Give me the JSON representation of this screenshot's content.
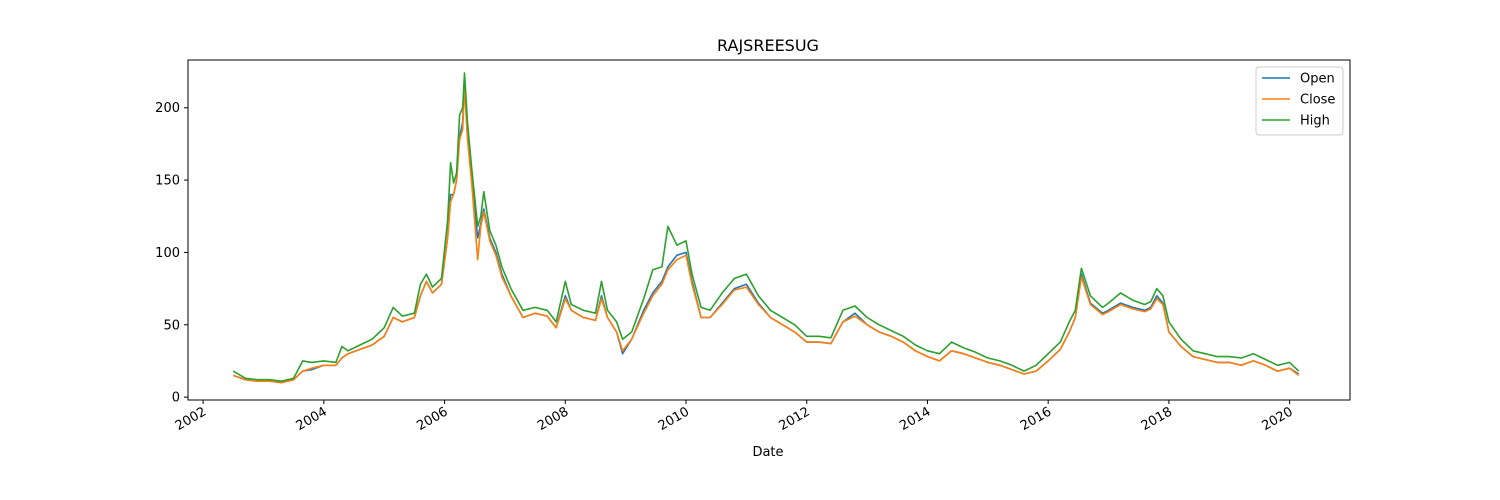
{
  "chart_data": {
    "type": "line",
    "title": "RAJSREESUG",
    "xlabel": "Date",
    "ylabel": "",
    "legend_position": "top-right",
    "grid": false,
    "xlim": [
      2001.75,
      2021.0
    ],
    "ylim": [
      -2,
      233
    ],
    "x_ticks": [
      2002,
      2004,
      2006,
      2008,
      2010,
      2012,
      2014,
      2016,
      2018,
      2020
    ],
    "x_tick_labels": [
      "2002",
      "2004",
      "2006",
      "2008",
      "2010",
      "2012",
      "2014",
      "2016",
      "2018",
      "2020"
    ],
    "y_ticks": [
      0,
      50,
      100,
      150,
      200
    ],
    "y_tick_labels": [
      "0",
      "50",
      "100",
      "150",
      "200"
    ],
    "x": [
      2002.5,
      2002.7,
      2002.9,
      2003.1,
      2003.3,
      2003.5,
      2003.65,
      2003.8,
      2004.0,
      2004.2,
      2004.3,
      2004.4,
      2004.6,
      2004.8,
      2005.0,
      2005.15,
      2005.3,
      2005.5,
      2005.6,
      2005.7,
      2005.8,
      2005.95,
      2006.05,
      2006.1,
      2006.15,
      2006.2,
      2006.25,
      2006.3,
      2006.33,
      2006.38,
      2006.45,
      2006.55,
      2006.6,
      2006.65,
      2006.75,
      2006.85,
      2006.95,
      2007.1,
      2007.3,
      2007.5,
      2007.7,
      2007.85,
      2008.0,
      2008.1,
      2008.3,
      2008.5,
      2008.6,
      2008.7,
      2008.85,
      2008.95,
      2009.1,
      2009.3,
      2009.45,
      2009.6,
      2009.7,
      2009.85,
      2010.0,
      2010.1,
      2010.25,
      2010.4,
      2010.6,
      2010.8,
      2011.0,
      2011.2,
      2011.4,
      2011.6,
      2011.8,
      2012.0,
      2012.2,
      2012.4,
      2012.6,
      2012.8,
      2013.0,
      2013.2,
      2013.4,
      2013.6,
      2013.8,
      2014.0,
      2014.2,
      2014.4,
      2014.6,
      2014.8,
      2015.0,
      2015.2,
      2015.4,
      2015.6,
      2015.8,
      2016.0,
      2016.2,
      2016.35,
      2016.45,
      2016.55,
      2016.7,
      2016.9,
      2017.0,
      2017.2,
      2017.4,
      2017.6,
      2017.7,
      2017.8,
      2017.9,
      2018.0,
      2018.2,
      2018.4,
      2018.6,
      2018.8,
      2019.0,
      2019.2,
      2019.4,
      2019.6,
      2019.8,
      2020.0,
      2020.15
    ],
    "series": [
      {
        "name": "Open",
        "color": "#1f77b4",
        "values": [
          15,
          12,
          11,
          11,
          10,
          12,
          18,
          19,
          22,
          22,
          27,
          30,
          33,
          36,
          42,
          55,
          52,
          55,
          70,
          80,
          72,
          78,
          110,
          140,
          140,
          150,
          180,
          190,
          220,
          180,
          150,
          110,
          120,
          130,
          110,
          100,
          85,
          70,
          55,
          58,
          56,
          48,
          70,
          60,
          55,
          53,
          70,
          55,
          45,
          30,
          40,
          60,
          72,
          80,
          90,
          98,
          100,
          80,
          55,
          55,
          65,
          75,
          78,
          65,
          55,
          50,
          45,
          38,
          38,
          37,
          52,
          58,
          50,
          45,
          42,
          38,
          32,
          28,
          25,
          32,
          30,
          27,
          24,
          22,
          19,
          16,
          18,
          25,
          33,
          45,
          55,
          85,
          65,
          58,
          60,
          65,
          62,
          60,
          62,
          70,
          65,
          45,
          35,
          28,
          26,
          24,
          24,
          22,
          25,
          22,
          18,
          20,
          16
        ]
      },
      {
        "name": "Close",
        "color": "#ff7f0e",
        "values": [
          15,
          12,
          11,
          11,
          10,
          12,
          18,
          20,
          22,
          22,
          27,
          30,
          33,
          36,
          42,
          55,
          52,
          55,
          70,
          80,
          72,
          78,
          110,
          135,
          140,
          150,
          178,
          185,
          215,
          178,
          148,
          95,
          118,
          128,
          108,
          98,
          83,
          70,
          55,
          58,
          56,
          48,
          68,
          60,
          55,
          53,
          68,
          55,
          45,
          32,
          40,
          58,
          70,
          78,
          88,
          95,
          98,
          78,
          55,
          55,
          64,
          74,
          76,
          64,
          55,
          50,
          45,
          38,
          38,
          37,
          52,
          56,
          50,
          45,
          42,
          38,
          32,
          28,
          25,
          32,
          30,
          27,
          24,
          22,
          19,
          16,
          18,
          25,
          33,
          45,
          55,
          83,
          64,
          57,
          59,
          64,
          61,
          59,
          61,
          68,
          64,
          45,
          35,
          28,
          26,
          24,
          24,
          22,
          25,
          22,
          18,
          20,
          15
        ]
      },
      {
        "name": "High",
        "color": "#2ca02c",
        "values": [
          18,
          13,
          12,
          12,
          11,
          13,
          25,
          24,
          25,
          24,
          35,
          32,
          36,
          40,
          48,
          62,
          56,
          58,
          78,
          85,
          76,
          82,
          122,
          162,
          148,
          155,
          195,
          200,
          224,
          190,
          158,
          118,
          125,
          142,
          115,
          105,
          90,
          75,
          60,
          62,
          60,
          52,
          80,
          64,
          60,
          58,
          80,
          60,
          52,
          40,
          45,
          68,
          88,
          90,
          118,
          105,
          108,
          85,
          62,
          60,
          72,
          82,
          85,
          70,
          60,
          55,
          50,
          42,
          42,
          41,
          60,
          63,
          55,
          50,
          46,
          42,
          36,
          32,
          30,
          38,
          34,
          31,
          27,
          25,
          22,
          18,
          22,
          30,
          38,
          52,
          60,
          89,
          70,
          62,
          65,
          72,
          67,
          64,
          66,
          75,
          70,
          52,
          40,
          32,
          30,
          28,
          28,
          27,
          30,
          26,
          22,
          24,
          18
        ]
      }
    ]
  }
}
